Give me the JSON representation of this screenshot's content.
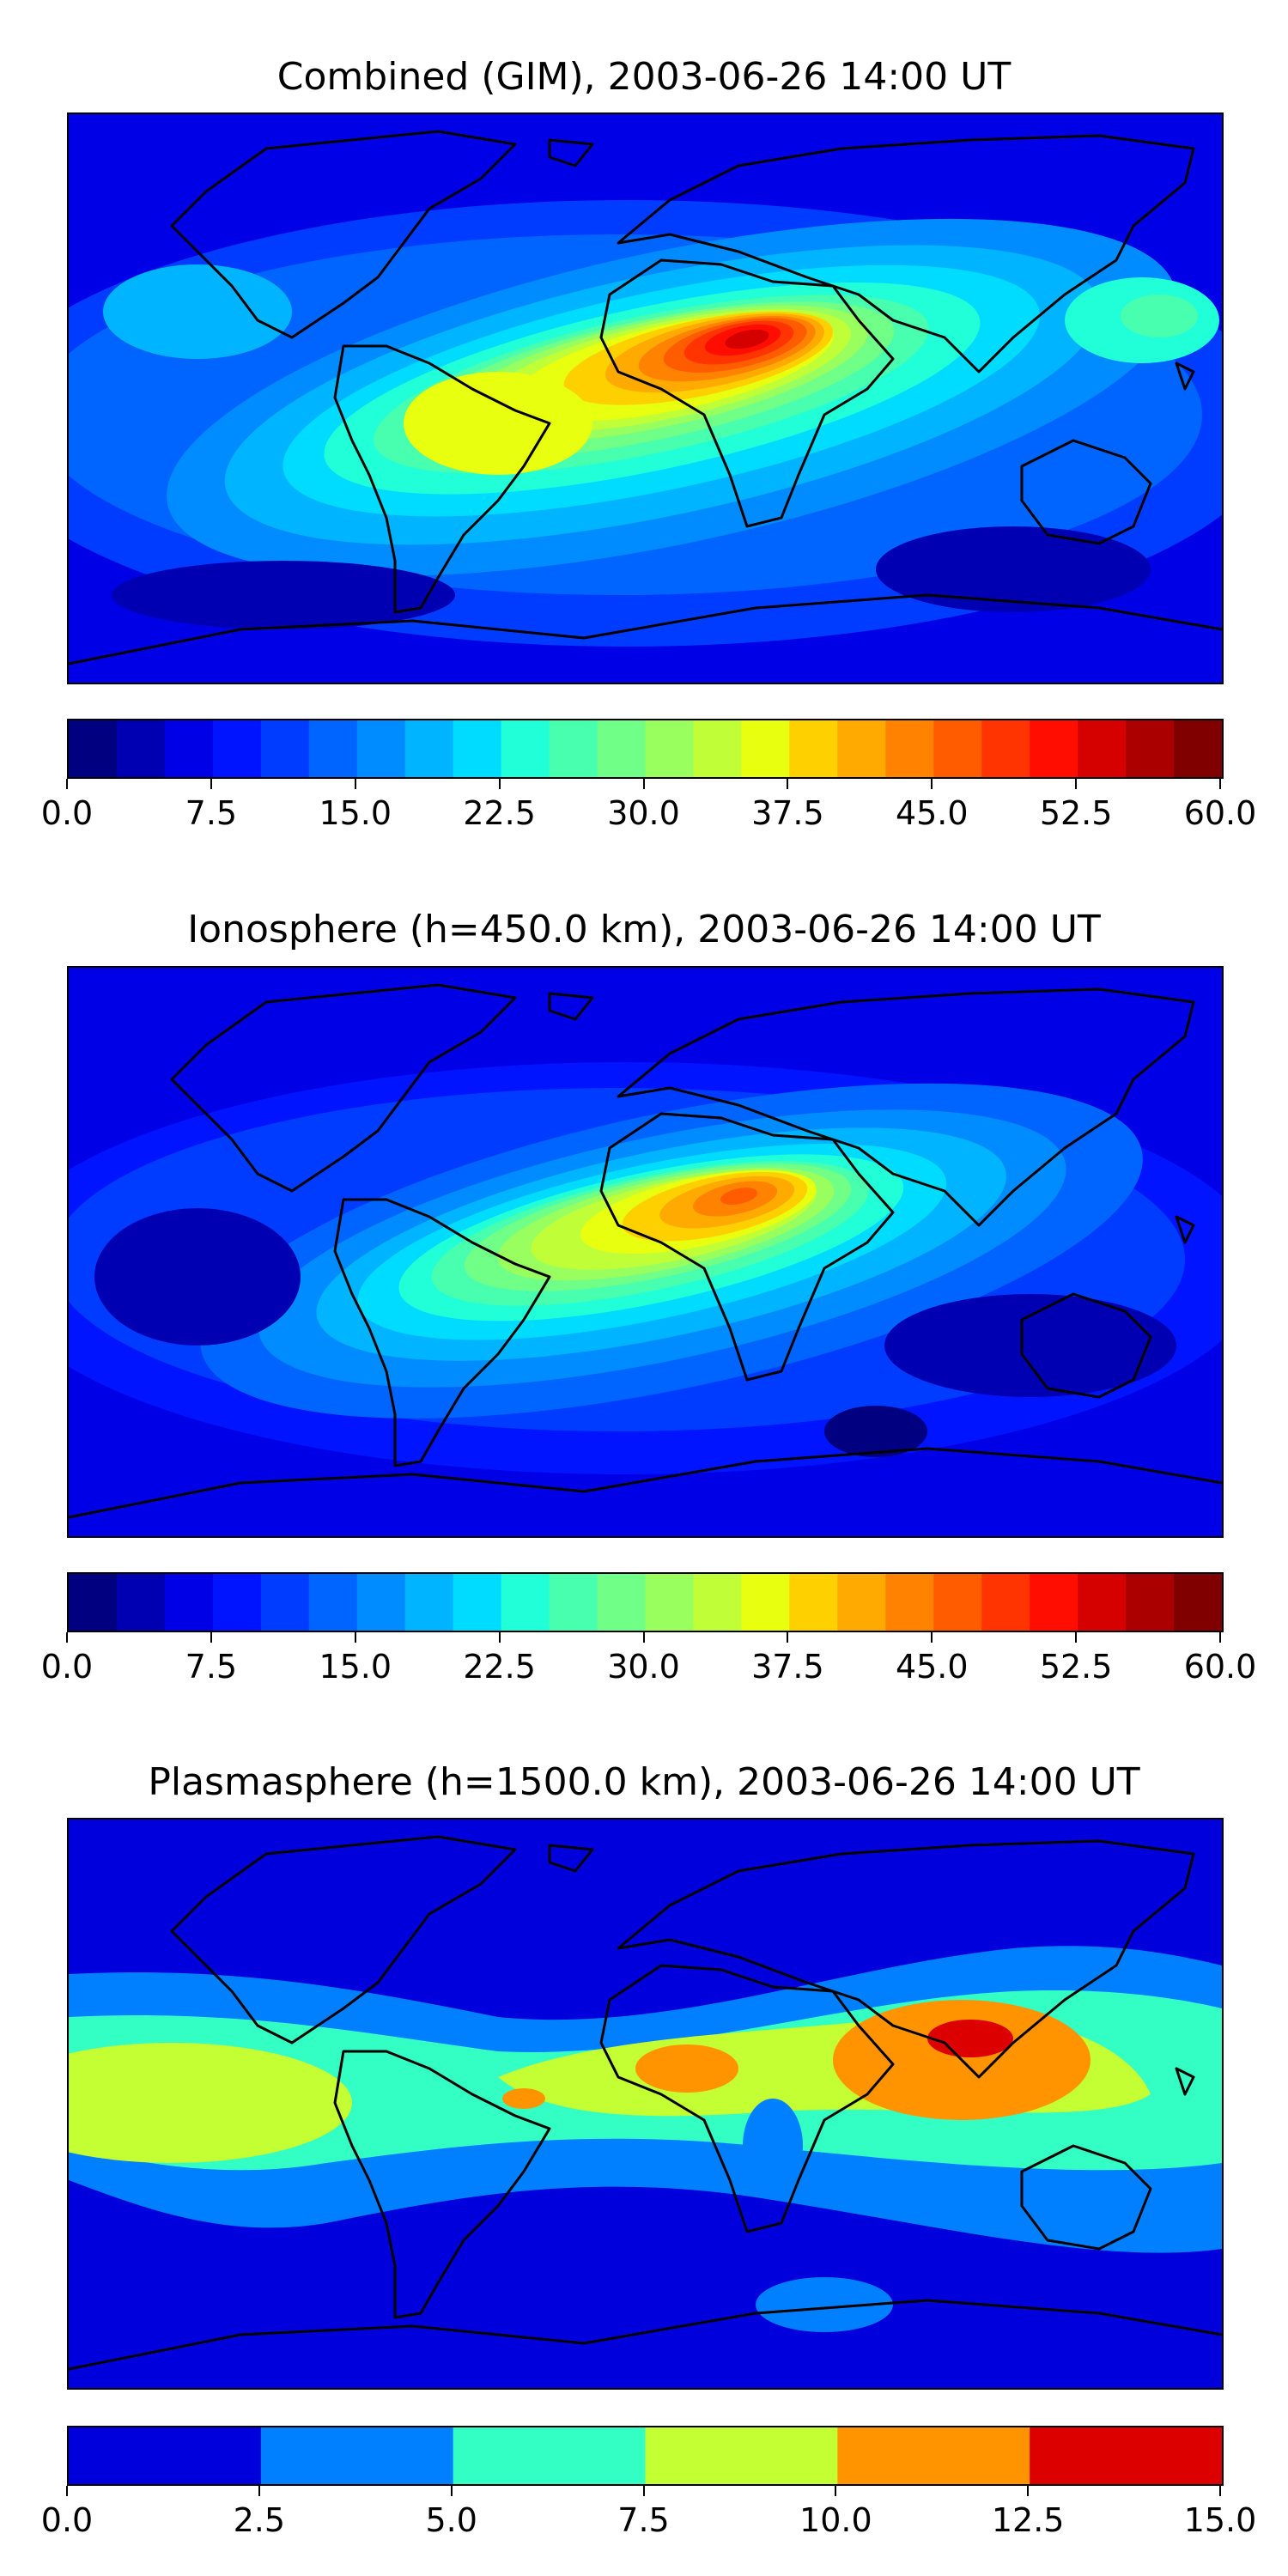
{
  "panels": [
    {
      "title": "Combined (GIM), 2003-06-26 14:00 UT",
      "colorbar": {
        "min": 0,
        "max": 60,
        "step": 2.5,
        "ticks": [
          "0.0",
          "7.5",
          "15.0",
          "22.5",
          "30.0",
          "37.5",
          "45.0",
          "52.5",
          "60.0"
        ],
        "colors": [
          "#000080",
          "#0000b3",
          "#0000e6",
          "#0014ff",
          "#003cff",
          "#0064ff",
          "#008cff",
          "#00b4ff",
          "#00dcff",
          "#20ffd7",
          "#48ffaf",
          "#70ff87",
          "#98ff5f",
          "#c0ff37",
          "#e8ff0f",
          "#ffd000",
          "#ffaa00",
          "#ff8200",
          "#ff5c00",
          "#ff3400",
          "#ff0e00",
          "#d50000",
          "#aa0000",
          "#800000"
        ]
      }
    },
    {
      "title": "Ionosphere  (h=450.0 km), 2003-06-26 14:00 UT",
      "colorbar": {
        "min": 0,
        "max": 60,
        "step": 2.5,
        "ticks": [
          "0.0",
          "7.5",
          "15.0",
          "22.5",
          "30.0",
          "37.5",
          "45.0",
          "52.5",
          "60.0"
        ],
        "colors": [
          "#000080",
          "#0000b3",
          "#0000e6",
          "#0014ff",
          "#003cff",
          "#0064ff",
          "#008cff",
          "#00b4ff",
          "#00dcff",
          "#20ffd7",
          "#48ffaf",
          "#70ff87",
          "#98ff5f",
          "#c0ff37",
          "#e8ff0f",
          "#ffd000",
          "#ffaa00",
          "#ff8200",
          "#ff5c00",
          "#ff3400",
          "#ff0e00",
          "#d50000",
          "#aa0000",
          "#800000"
        ]
      }
    },
    {
      "title": "Plasmasphere (h=1500.0 km), 2003-06-26 14:00 UT",
      "colorbar": {
        "min": 0,
        "max": 15,
        "step": 2.5,
        "ticks": [
          "0.0",
          "2.5",
          "5.0",
          "7.5",
          "10.0",
          "12.5",
          "15.0"
        ],
        "colors": [
          "#0000dd",
          "#0080ff",
          "#33ffc4",
          "#c4ff33",
          "#ff9400",
          "#dd0000"
        ]
      }
    }
  ],
  "colors": {
    "coastline": "#000000"
  }
}
